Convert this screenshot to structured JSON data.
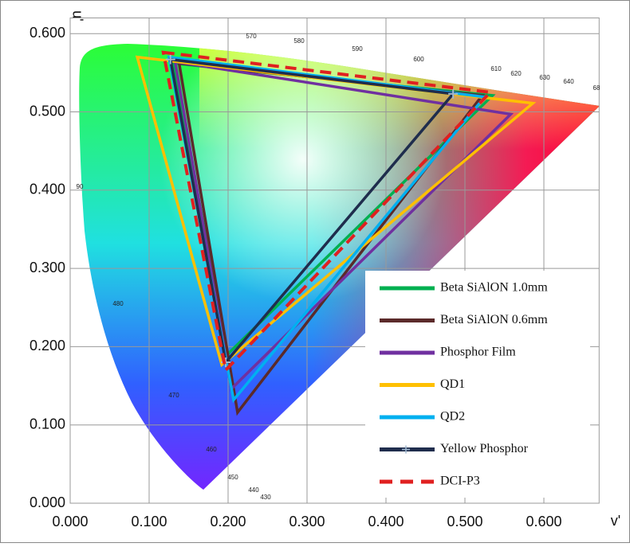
{
  "chart_data": {
    "type": "line",
    "x_label": "v'",
    "y_label": "u'",
    "xlim": [
      0,
      0.67
    ],
    "ylim": [
      0,
      0.62
    ],
    "xticks": [
      {
        "value": 0,
        "label": "0.000"
      },
      {
        "value": 0.1,
        "label": "0.100"
      },
      {
        "value": 0.2,
        "label": "0.200"
      },
      {
        "value": 0.3,
        "label": "0.300"
      },
      {
        "value": 0.4,
        "label": "0.400"
      },
      {
        "value": 0.5,
        "label": "0.500"
      },
      {
        "value": 0.6,
        "label": "0.600"
      }
    ],
    "yticks": [
      {
        "value": 0,
        "label": "0.000"
      },
      {
        "value": 0.1,
        "label": "0.100"
      },
      {
        "value": 0.2,
        "label": "0.200"
      },
      {
        "value": 0.3,
        "label": "0.300"
      },
      {
        "value": 0.4,
        "label": "0.400"
      },
      {
        "value": 0.5,
        "label": "0.500"
      },
      {
        "value": 0.6,
        "label": "0.600"
      }
    ],
    "grid": true,
    "legend": "lower right",
    "annotations": [
      "570",
      "580",
      "590",
      "600",
      "610",
      "620",
      "630",
      "640",
      "68",
      "90",
      "480",
      "470",
      "460",
      "450",
      "440",
      "430"
    ],
    "series": [
      {
        "name": "Beta SiAlON 1.0mm",
        "color": "#00b050",
        "x": [
          0.131,
          0.535,
          0.199
        ],
        "values": [
          0.562,
          0.521,
          0.19
        ]
      },
      {
        "name": "Beta SiAlON 0.6mm",
        "color": "#5b2a2a",
        "x": [
          0.138,
          0.522,
          0.212
        ],
        "values": [
          0.562,
          0.521,
          0.116
        ]
      },
      {
        "name": "Phosphor Film",
        "color": "#7030a0",
        "x": [
          0.133,
          0.558,
          0.204
        ],
        "values": [
          0.564,
          0.497,
          0.146
        ]
      },
      {
        "name": "QD1",
        "color": "#ffc000",
        "x": [
          0.085,
          0.586,
          0.192
        ],
        "values": [
          0.57,
          0.511,
          0.177
        ]
      },
      {
        "name": "QD2",
        "color": "#00b0f0",
        "x": [
          0.125,
          0.525,
          0.207
        ],
        "values": [
          0.57,
          0.519,
          0.132
        ]
      },
      {
        "name": "Yellow Phosphor",
        "color": "#1f2d4d",
        "marker": "+",
        "x": [
          0.127,
          0.485,
          0.197
        ],
        "values": [
          0.567,
          0.523,
          0.18
        ]
      },
      {
        "name": "DCI-P3",
        "color": "#e02020",
        "dashed": true,
        "x": [
          0.118,
          0.532,
          0.197
        ],
        "values": [
          0.576,
          0.525,
          0.17
        ]
      }
    ]
  }
}
